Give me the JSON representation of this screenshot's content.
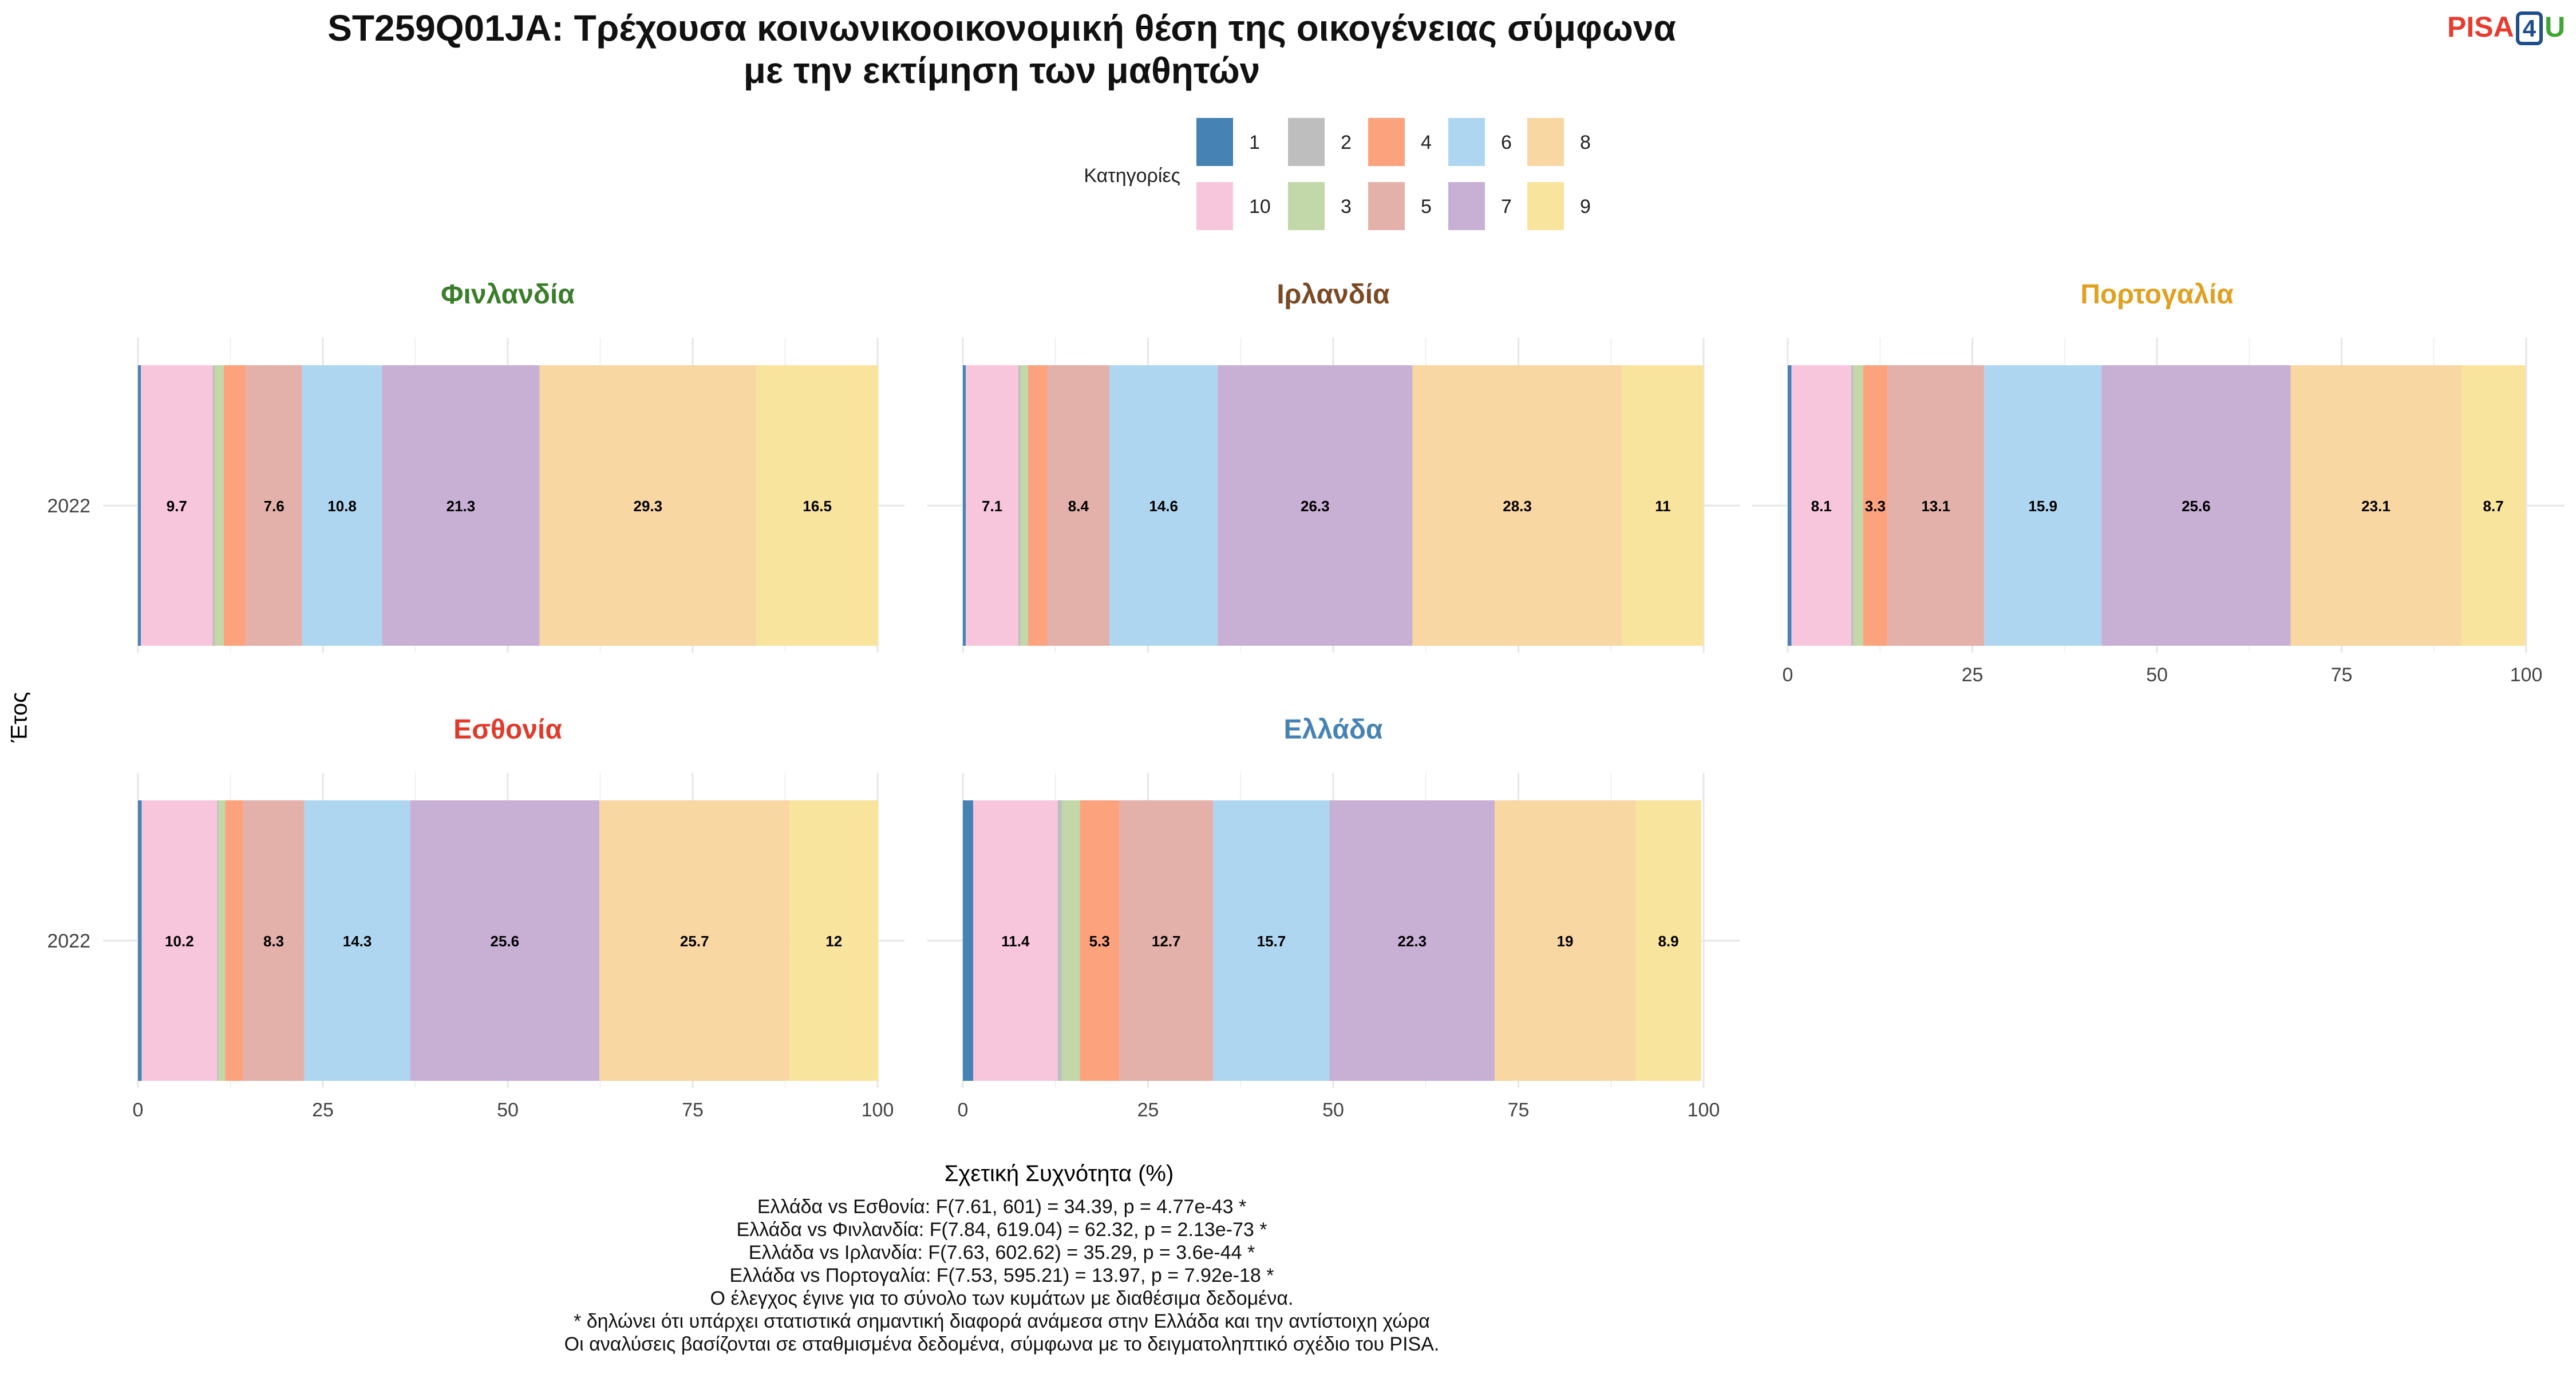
{
  "title_lines": [
    "ST259Q01JA: Τρέχουσα κοινωνικοοικονομική θέση της οικογένειας σύμφωνα",
    "με την εκτίμηση των μαθητών"
  ],
  "logo": {
    "pisa": "PISA",
    "four": "4",
    "u": "U"
  },
  "legend": {
    "title": "Κατηγορίες",
    "items": [
      {
        "label": "1",
        "color": "#4682b4"
      },
      {
        "label": "2",
        "color": "#bebebe"
      },
      {
        "label": "4",
        "color": "#fca27d"
      },
      {
        "label": "6",
        "color": "#afd6f0"
      },
      {
        "label": "8",
        "color": "#f9d7a2"
      },
      {
        "label": "10",
        "color": "#f8c6dc"
      },
      {
        "label": "3",
        "color": "#c3d8a8"
      },
      {
        "label": "5",
        "color": "#e3b1aa"
      },
      {
        "label": "7",
        "color": "#c8b0d5"
      },
      {
        "label": "9",
        "color": "#f8e49c"
      }
    ]
  },
  "axis": {
    "ylabel": "Έτος",
    "xlabel": "Σχετική Συχνότητα (%)",
    "xticks": [
      "0",
      "25",
      "50",
      "75",
      "100"
    ]
  },
  "chart_data": {
    "type": "bar",
    "orientation": "horizontal",
    "stacked": true,
    "xlim": [
      0,
      100
    ],
    "category_order": [
      "1",
      "10",
      "2",
      "3",
      "4",
      "5",
      "6",
      "7",
      "8",
      "9"
    ],
    "colors": {
      "1": "#4682b4",
      "10": "#f8c6dc",
      "2": "#bebebe",
      "3": "#c3d8a8",
      "4": "#fca27d",
      "5": "#e3b1aa",
      "6": "#afd6f0",
      "7": "#c8b0d5",
      "8": "#f9d7a2",
      "9": "#f8e49c"
    },
    "panels": [
      {
        "country": "Φινλανδία",
        "title_color": "#3a7d2a",
        "year": "2022",
        "values": {
          "1": 0.4,
          "10": 9.7,
          "2": 0.3,
          "3": 1.2,
          "4": 3.0,
          "5": 7.6,
          "6": 10.8,
          "7": 21.3,
          "8": 29.3,
          "9": 16.5
        },
        "labels": {
          "10": "9.7",
          "5": "7.6",
          "6": "10.8",
          "7": "21.3",
          "8": "29.3",
          "9": "16.5"
        }
      },
      {
        "country": "Ιρλανδία",
        "title_color": "#7a4a25",
        "year": "2022",
        "values": {
          "1": 0.4,
          "10": 7.1,
          "2": 0.3,
          "3": 1.0,
          "4": 2.6,
          "5": 8.4,
          "6": 14.6,
          "7": 26.3,
          "8": 28.3,
          "9": 11.0
        },
        "labels": {
          "10": "7.1",
          "5": "8.4",
          "6": "14.6",
          "7": "26.3",
          "8": "28.3",
          "9": "11"
        }
      },
      {
        "country": "Πορτογαλία",
        "title_color": "#e0a020",
        "year": "2022",
        "values": {
          "1": 0.5,
          "10": 8.1,
          "2": 0.3,
          "3": 1.3,
          "4": 3.3,
          "5": 13.1,
          "6": 15.9,
          "7": 25.6,
          "8": 23.1,
          "9": 8.7
        },
        "labels": {
          "10": "8.1",
          "4": "3.3",
          "5": "13.1",
          "6": "15.9",
          "7": "25.6",
          "8": "23.1",
          "9": "8.7"
        }
      },
      {
        "country": "Εσθονία",
        "title_color": "#e03a2a",
        "year": "2022",
        "values": {
          "1": 0.5,
          "10": 10.2,
          "2": 0.2,
          "3": 0.9,
          "4": 2.4,
          "5": 8.3,
          "6": 14.3,
          "7": 25.6,
          "8": 25.7,
          "9": 12.0
        },
        "labels": {
          "10": "10.2",
          "5": "8.3",
          "6": "14.3",
          "7": "25.6",
          "8": "25.7",
          "9": "12"
        }
      },
      {
        "country": "Ελλάδα",
        "title_color": "#4682b4",
        "year": "2022",
        "values": {
          "1": 1.4,
          "10": 11.4,
          "2": 0.6,
          "3": 2.4,
          "4": 5.3,
          "5": 12.7,
          "6": 15.7,
          "7": 22.3,
          "8": 19.0,
          "9": 8.9
        },
        "labels": {
          "10": "11.4",
          "4": "5.3",
          "5": "12.7",
          "6": "15.7",
          "7": "22.3",
          "8": "19",
          "9": "8.9"
        }
      }
    ]
  },
  "footnotes": [
    "Ελλάδα vs Εσθονία: F(7.61, 601) = 34.39, p = 4.77e-43 *",
    "Ελλάδα vs Φινλανδία: F(7.84, 619.04) = 62.32, p = 2.13e-73 *",
    "Ελλάδα vs Ιρλανδία: F(7.63, 602.62) = 35.29, p = 3.6e-44 *",
    "Ελλάδα vs Πορτογαλία: F(7.53, 595.21) = 13.97, p = 7.92e-18 *",
    "Ο έλεγχος έγινε για το σύνολο των κυμάτων με διαθέσιμα δεδομένα.",
    "* δηλώνει ότι υπάρχει στατιστικά σημαντική διαφορά ανάμεσα στην Ελλάδα και την αντίστοιχη χώρα",
    "Οι αναλύσεις βασίζονται σε σταθμισμένα δεδομένα, σύμφωνα με το δειγματοληπτικό σχέδιο του PISA."
  ]
}
